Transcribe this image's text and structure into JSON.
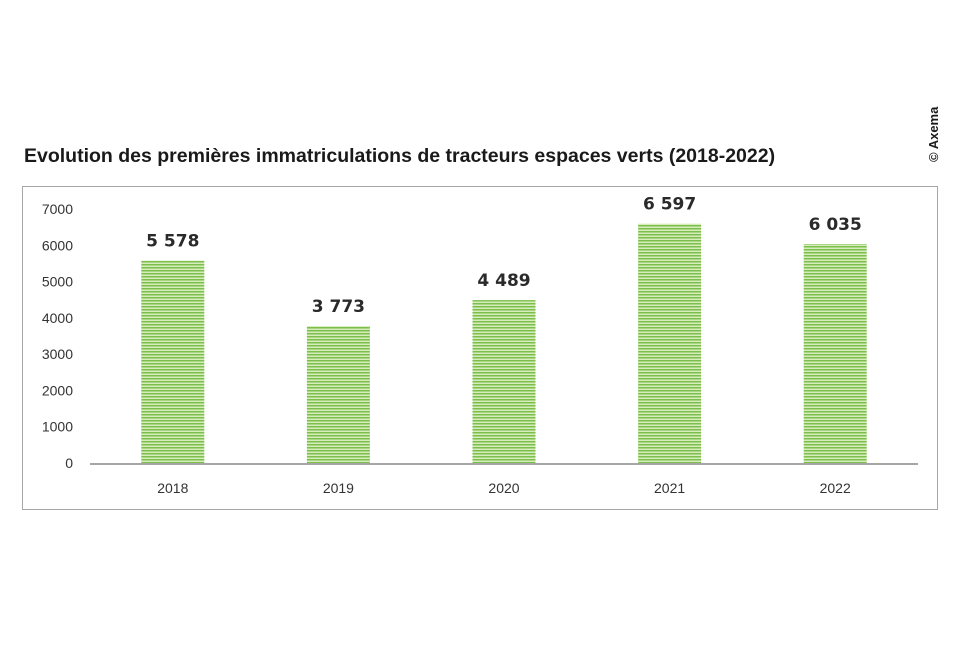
{
  "credit": "© Axema",
  "colors": {
    "bar_stripe_light": "#d6ecbd",
    "bar_stripe_dark": "#7cbf4a",
    "axis": "#a6a6a6"
  },
  "chart_data": {
    "type": "bar",
    "title": "Evolution des premières immatriculations de tracteurs espaces verts (2018-2022)",
    "xlabel": "",
    "ylabel": "",
    "categories": [
      "2018",
      "2019",
      "2020",
      "2021",
      "2022"
    ],
    "values": [
      5578,
      3773,
      4489,
      6597,
      6035
    ],
    "data_labels": [
      "5 578",
      "3 773",
      "4 489",
      "6 597",
      "6 035"
    ],
    "yticks": [
      0,
      1000,
      2000,
      3000,
      4000,
      5000,
      6000,
      7000
    ],
    "ylim": [
      0,
      7000
    ],
    "grid": false,
    "legend": "none"
  }
}
